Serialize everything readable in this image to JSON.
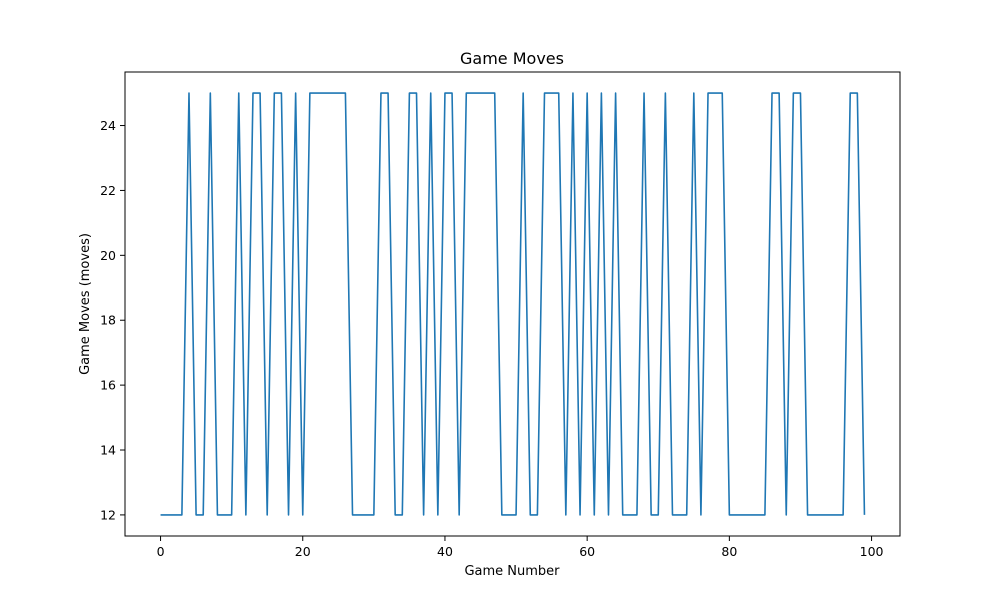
{
  "chart_data": {
    "type": "line",
    "title": "Game Moves",
    "xlabel": "Game Number",
    "ylabel": "Game Moves (moves)",
    "xlim": [
      -5,
      104
    ],
    "ylim": [
      11.35,
      25.65
    ],
    "xticks": [
      0,
      20,
      40,
      60,
      80,
      100
    ],
    "yticks": [
      12,
      14,
      16,
      18,
      20,
      22,
      24
    ],
    "grid": false,
    "series": [
      {
        "color": "#1f77b4",
        "x": [
          0,
          1,
          2,
          3,
          4,
          5,
          6,
          7,
          8,
          9,
          10,
          11,
          12,
          13,
          14,
          15,
          16,
          17,
          18,
          19,
          20,
          21,
          22,
          23,
          24,
          25,
          26,
          27,
          28,
          29,
          30,
          31,
          32,
          33,
          34,
          35,
          36,
          37,
          38,
          39,
          40,
          41,
          42,
          43,
          44,
          45,
          46,
          47,
          48,
          49,
          50,
          51,
          52,
          53,
          54,
          55,
          56,
          57,
          58,
          59,
          60,
          61,
          62,
          63,
          64,
          65,
          66,
          67,
          68,
          69,
          70,
          71,
          72,
          73,
          74,
          75,
          76,
          77,
          78,
          79,
          80,
          81,
          82,
          83,
          84,
          85,
          86,
          87,
          88,
          89,
          90,
          91,
          92,
          93,
          94,
          95,
          96,
          97,
          98,
          99
        ],
        "y": [
          12,
          12,
          12,
          12,
          25,
          12,
          12,
          25,
          12,
          12,
          12,
          25,
          12,
          25,
          25,
          12,
          25,
          25,
          12,
          25,
          12,
          25,
          25,
          25,
          25,
          25,
          25,
          12,
          12,
          12,
          12,
          25,
          25,
          12,
          12,
          25,
          25,
          12,
          25,
          12,
          25,
          25,
          12,
          25,
          25,
          25,
          25,
          25,
          12,
          12,
          12,
          25,
          12,
          12,
          25,
          25,
          25,
          12,
          25,
          12,
          25,
          12,
          25,
          12,
          25,
          12,
          12,
          12,
          25,
          12,
          12,
          25,
          12,
          12,
          12,
          25,
          12,
          25,
          25,
          25,
          12,
          12,
          12,
          12,
          12,
          12,
          25,
          25,
          12,
          25,
          25,
          12,
          12,
          12,
          12,
          12,
          12,
          25,
          25,
          12
        ]
      }
    ]
  }
}
